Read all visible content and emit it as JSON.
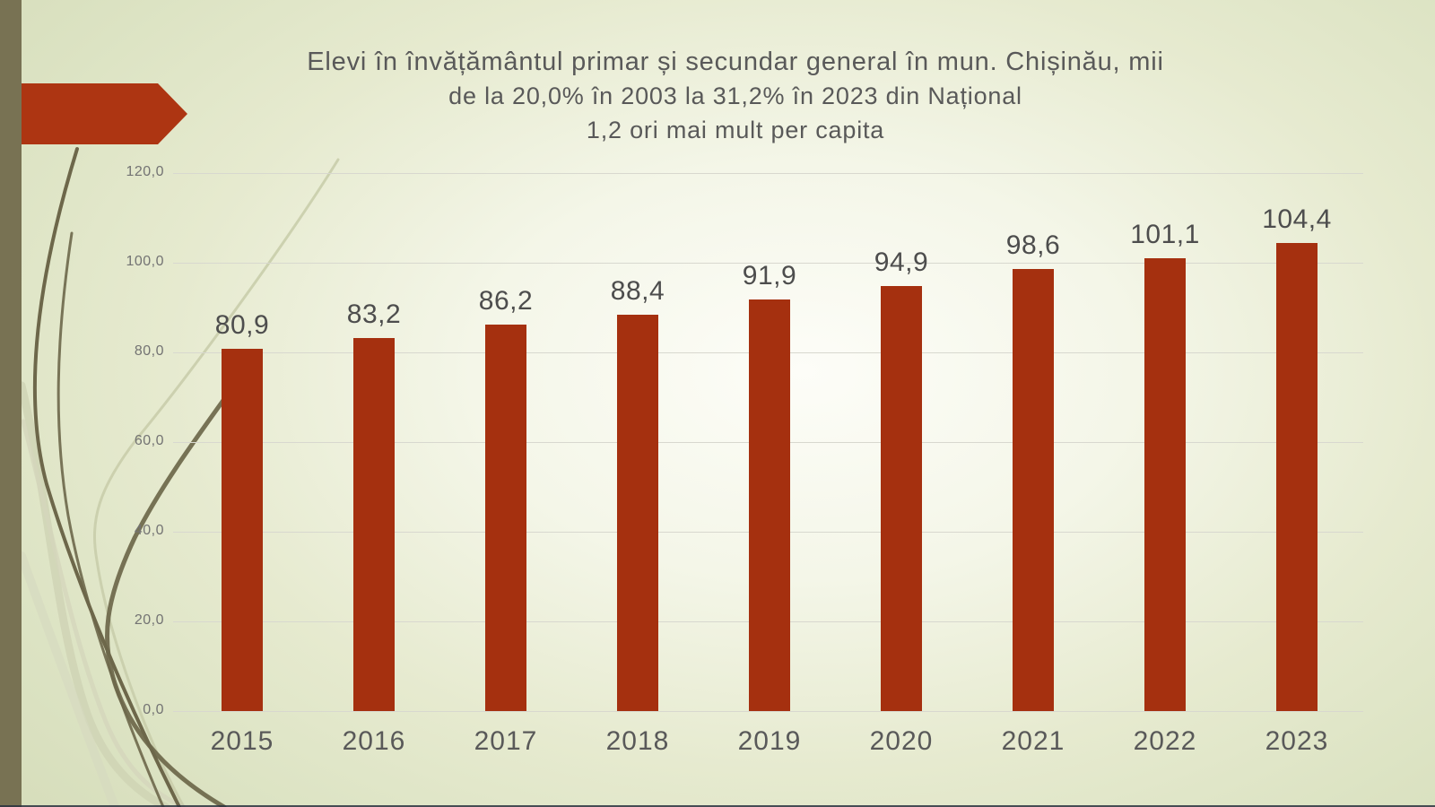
{
  "chart_data": {
    "type": "bar",
    "title": "Elevi în învățământul primar și secundar general în mun. Chișinău, mii",
    "subtitle": "de la 20,0% în 2003 la 31,2% în 2023 din Național",
    "subtitle2": "1,2 ori mai mult per capita",
    "categories": [
      "2015",
      "2016",
      "2017",
      "2018",
      "2019",
      "2020",
      "2021",
      "2022",
      "2023"
    ],
    "values": [
      80.9,
      83.2,
      86.2,
      88.4,
      91.9,
      94.9,
      98.6,
      101.1,
      104.4
    ],
    "value_labels": [
      "80,9",
      "83,2",
      "86,2",
      "88,4",
      "91,9",
      "94,9",
      "98,6",
      "101,1",
      "104,4"
    ],
    "ylim": [
      0,
      120
    ],
    "yticks": [
      0,
      20,
      40,
      60,
      80,
      100,
      120
    ],
    "ytick_labels": [
      "0,0",
      "20,0",
      "40,0",
      "60,0",
      "80,0",
      "100,0",
      "120,0"
    ],
    "grid": true,
    "legend": "none",
    "xlabel": "",
    "ylabel": ""
  },
  "colors": {
    "bar": "#a5300f",
    "arrow": "#ad3512",
    "sidebar": "#787253",
    "title_text": "#595959",
    "axis_tick_text": "#737373",
    "category_text": "#595959",
    "value_text": "#4d4d4d",
    "gridline": "#d8d8cf",
    "curve_dark": "#6d674a",
    "curve_light": "#ced1b3"
  }
}
